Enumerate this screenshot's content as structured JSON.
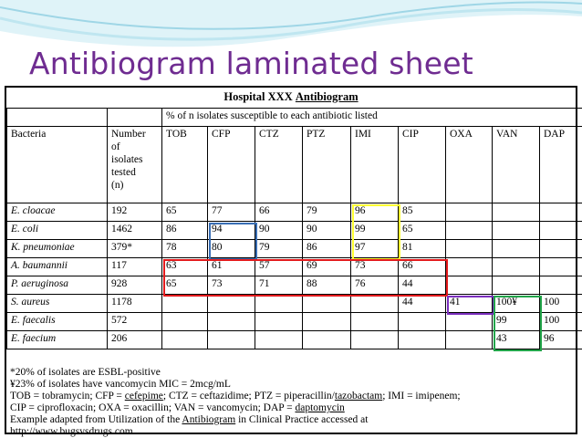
{
  "slide": {
    "title": "Antibiogram laminated sheet"
  },
  "sheet": {
    "title_prefix": "Hospital XXX ",
    "title_underlined": "Antibiogram",
    "span_header": "% of n isolates susceptible to each antibiotic listed",
    "col_bacteria": "Bacteria",
    "col_number_lines": [
      "Number",
      "of",
      "isolates",
      "tested",
      "(n)"
    ],
    "antibiotics": [
      "TOB",
      "CFP",
      "CTZ",
      "PTZ",
      "IMI",
      "CIP",
      "OXA",
      "VAN",
      "DAP"
    ],
    "rows": [
      {
        "name": "E. cloacae",
        "n": "192",
        "values": [
          "65",
          "77",
          "66",
          "79",
          "96",
          "85",
          "",
          "",
          ""
        ]
      },
      {
        "name": "E. coli",
        "n": "1462",
        "values": [
          "86",
          "94",
          "90",
          "90",
          "99",
          "65",
          "",
          "",
          ""
        ]
      },
      {
        "name": "K. pneumoniae",
        "n": "379*",
        "values": [
          "78",
          "80",
          "79",
          "86",
          "97",
          "81",
          "",
          "",
          ""
        ]
      },
      {
        "name": "A. baumannii",
        "n": "117",
        "values": [
          "63",
          "61",
          "57",
          "69",
          "73",
          "66",
          "",
          "",
          ""
        ]
      },
      {
        "name": "P. aeruginosa",
        "n": "928",
        "values": [
          "65",
          "73",
          "71",
          "88",
          "76",
          "44",
          "",
          "",
          ""
        ]
      },
      {
        "name": "S. aureus",
        "n": "1178",
        "values": [
          "",
          "",
          "",
          "",
          "",
          "44",
          "41",
          "100¥",
          "100"
        ]
      },
      {
        "name": "E. faecalis",
        "n": "572",
        "values": [
          "",
          "",
          "",
          "",
          "",
          "",
          "",
          "99",
          "100"
        ]
      },
      {
        "name": "E. faecium",
        "n": "206",
        "values": [
          "",
          "",
          "",
          "",
          "",
          "",
          "",
          "43",
          "96"
        ]
      }
    ],
    "notes": {
      "n1": "*20% of isolates are ESBL-positive",
      "n2": "¥23% of isolates have vancomycin MIC = 2mcg/mL",
      "n3_a": "TOB = tobramycin; CFP = ",
      "n3_b": "cefepime",
      "n3_c": "; CTZ = ceftazidime; PTZ = piperacillin/",
      "n3_d": "tazobactam",
      "n3_e": "; IMI = imipenem;",
      "n4_a": " CIP = ciprofloxacin; OXA = oxacillin; VAN = vancomycin; DAP = ",
      "n4_b": "daptomycin",
      "n5_a": "Example adapted from Utilization of the ",
      "n5_b": "Antibiogram",
      "n5_c": " in Clinical Practice accessed at",
      "n6": "http://www.bugsvsdrugs.com"
    }
  },
  "highlight_colors": {
    "cephalosporin": "#3a6fb5",
    "carbapenem": "#ffff33",
    "nonfermenter": "#e41a1c",
    "staph": "#7b2fbe",
    "enterococcus": "#22a54a"
  }
}
